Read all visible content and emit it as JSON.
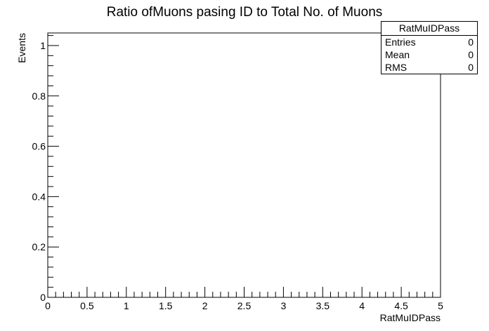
{
  "chart_data": {
    "type": "bar",
    "title": "Ratio ofMuons pasing ID to Total No. of Muons",
    "xlabel": "RatMuIDPass",
    "ylabel": "Events",
    "xlim": [
      0,
      5
    ],
    "ylim": [
      0,
      1.05
    ],
    "x_ticks": [
      "0",
      "0.5",
      "1",
      "1.5",
      "2",
      "2.5",
      "3",
      "3.5",
      "4",
      "4.5",
      "5"
    ],
    "y_ticks": [
      "0",
      "0.2",
      "0.4",
      "0.6",
      "0.8",
      "1"
    ],
    "series": [],
    "legend_position": "top-right",
    "grid": false
  },
  "stats_box": {
    "title": "RatMuIDPass",
    "rows": [
      {
        "label": "Entries",
        "value": "0"
      },
      {
        "label": "Mean",
        "value": "0"
      },
      {
        "label": "RMS",
        "value": "0"
      }
    ]
  }
}
